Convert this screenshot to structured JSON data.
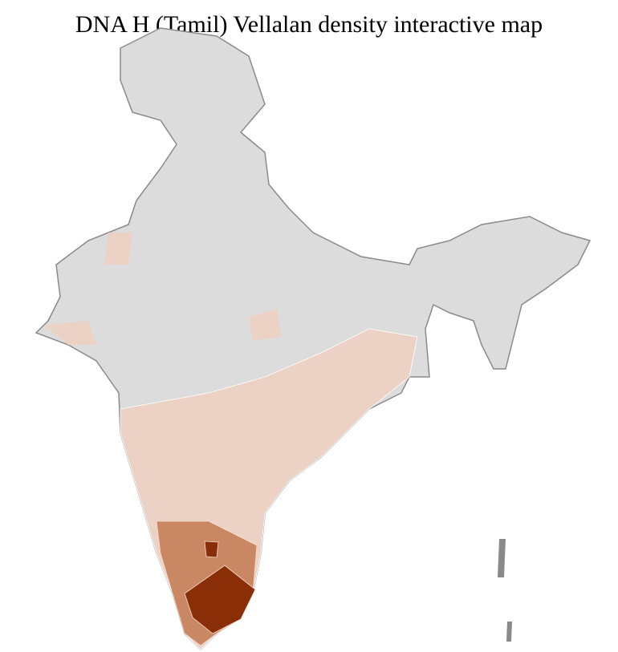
{
  "title": "DNA H (Tamil) Vellalan density interactive map",
  "map": {
    "region": "India (districts)",
    "colors": {
      "no_data": "#dcdcdc",
      "low": "#ecd2c4",
      "medium": "#c98763",
      "high": "#8a2e08",
      "borders_state": "#8a8a8a",
      "borders_district": "#ffffff"
    }
  }
}
